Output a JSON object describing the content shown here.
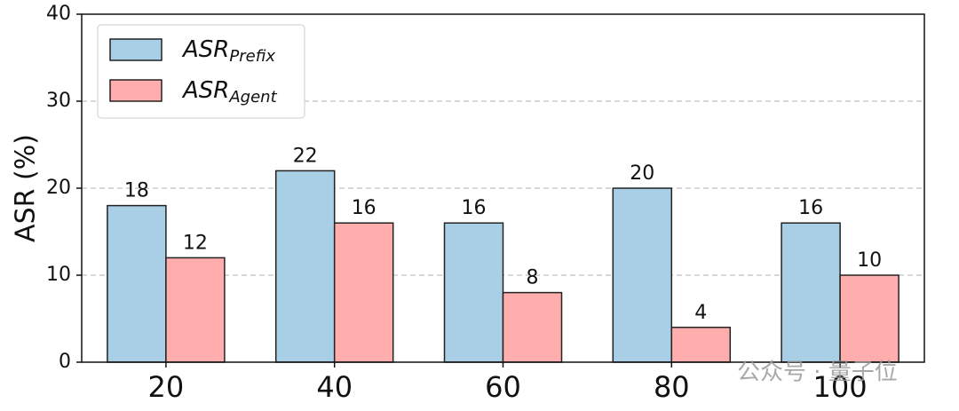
{
  "chart_data": {
    "type": "bar",
    "y_label": "ASR (%)",
    "categories": [
      "20",
      "40",
      "60",
      "80",
      "100"
    ],
    "series": [
      {
        "name": "ASR",
        "name_sub": "Prefix",
        "color": "#a9cfe6",
        "values": [
          18,
          22,
          16,
          20,
          16
        ]
      },
      {
        "name": "ASR",
        "name_sub": "Agent",
        "color": "#ffadad",
        "values": [
          12,
          16,
          8,
          4,
          10
        ]
      }
    ],
    "ylim": [
      0,
      40
    ],
    "yticks": [
      0,
      10,
      20,
      30,
      40
    ],
    "grid": true,
    "legend": "upper left",
    "watermark": "公众号 · 量子位"
  }
}
